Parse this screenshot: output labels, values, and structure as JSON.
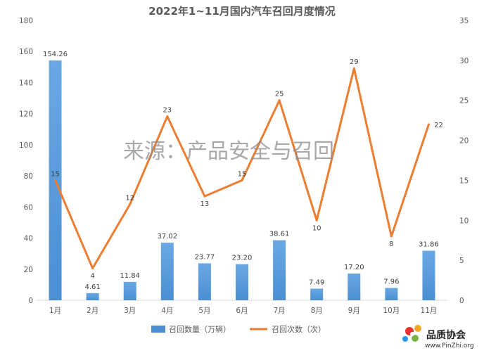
{
  "chart_data": {
    "type": "bar+line",
    "title": "2022年1~11月国内汽车召回月度情况",
    "categories": [
      "1月",
      "2月",
      "3月",
      "4月",
      "5月",
      "6月",
      "7月",
      "8月",
      "9月",
      "10月",
      "11月"
    ],
    "series": [
      {
        "name": "召回数量（万辆）",
        "type": "bar",
        "axis": "left",
        "color": "#4a8fd3",
        "values": [
          154.26,
          4.61,
          11.84,
          37.02,
          23.77,
          23.2,
          38.61,
          7.49,
          17.2,
          7.96,
          31.86
        ],
        "labels": [
          "154.26",
          "4.61",
          "11.84",
          "37.02",
          "23.77",
          "23.20",
          "38.61",
          "7.49",
          "17.20",
          "7.96",
          "31.86"
        ]
      },
      {
        "name": "召回次数（次）",
        "type": "line",
        "axis": "right",
        "color": "#ed7d31",
        "values": [
          15,
          4,
          12,
          23,
          13,
          15,
          25,
          10,
          29,
          8,
          22
        ],
        "labels": [
          "15",
          "4",
          "12",
          "23",
          "13",
          "15",
          "25",
          "10",
          "29",
          "8",
          "22"
        ]
      }
    ],
    "y_left": {
      "ylim": [
        0,
        180
      ],
      "ticks": [
        "0",
        "20",
        "40",
        "60",
        "80",
        "100",
        "120",
        "140",
        "160",
        "180"
      ]
    },
    "y_right": {
      "ylim": [
        0,
        35
      ],
      "ticks": [
        "0",
        "5",
        "10",
        "15",
        "20",
        "25",
        "30",
        "35"
      ]
    },
    "grid": false,
    "legend_position": "bottom"
  },
  "watermark": "来源：产品安全与召回",
  "logo": {
    "name": "品质协会",
    "url": "www.PinZhi.org"
  }
}
